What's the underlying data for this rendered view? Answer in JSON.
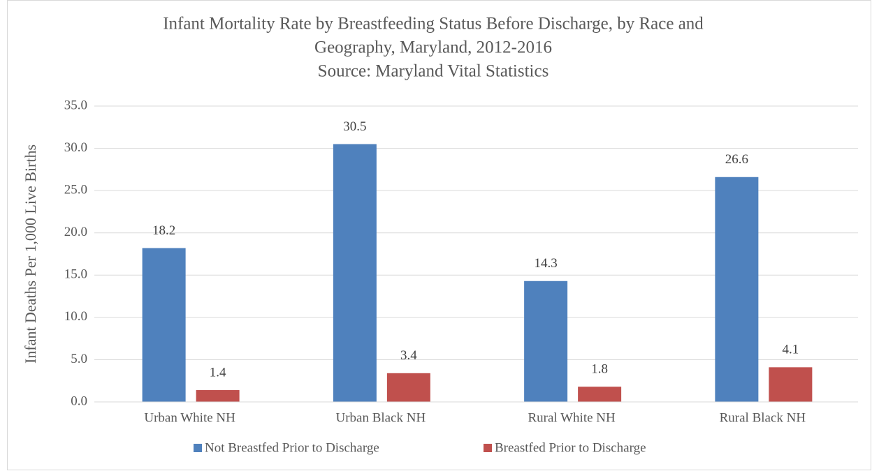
{
  "chart_data": {
    "type": "bar",
    "title": [
      "Infant Mortality Rate by Breastfeeding Status Before Discharge, by Race and",
      "Geography, Maryland, 2012-2016"
    ],
    "subtitle": "Source: Maryland Vital Statistics",
    "y_label": "Infant Deaths Per 1,000 Live Births",
    "categories": [
      "Urban White NH",
      "Urban Black NH",
      "Rural White NH",
      "Rural Black NH"
    ],
    "series": [
      {
        "name": "Not Breastfed Prior to Discharge",
        "color": "#4f81bd",
        "values": [
          18.2,
          30.5,
          14.3,
          26.6
        ]
      },
      {
        "name": "Breastfed Prior to Discharge",
        "color": "#c0504d",
        "values": [
          1.4,
          3.4,
          1.8,
          4.1
        ]
      }
    ],
    "ylim": [
      0,
      35
    ],
    "yticks": [
      {
        "value": 0,
        "label": "0.0"
      },
      {
        "value": 5,
        "label": "5.0"
      },
      {
        "value": 10,
        "label": "10.0"
      },
      {
        "value": 15,
        "label": "15.0"
      },
      {
        "value": 20,
        "label": "20.0"
      },
      {
        "value": 25,
        "label": "25.0"
      },
      {
        "value": 30,
        "label": "30.0"
      },
      {
        "value": 35,
        "label": "35.0"
      }
    ],
    "grid": true,
    "legend": "bottom"
  }
}
